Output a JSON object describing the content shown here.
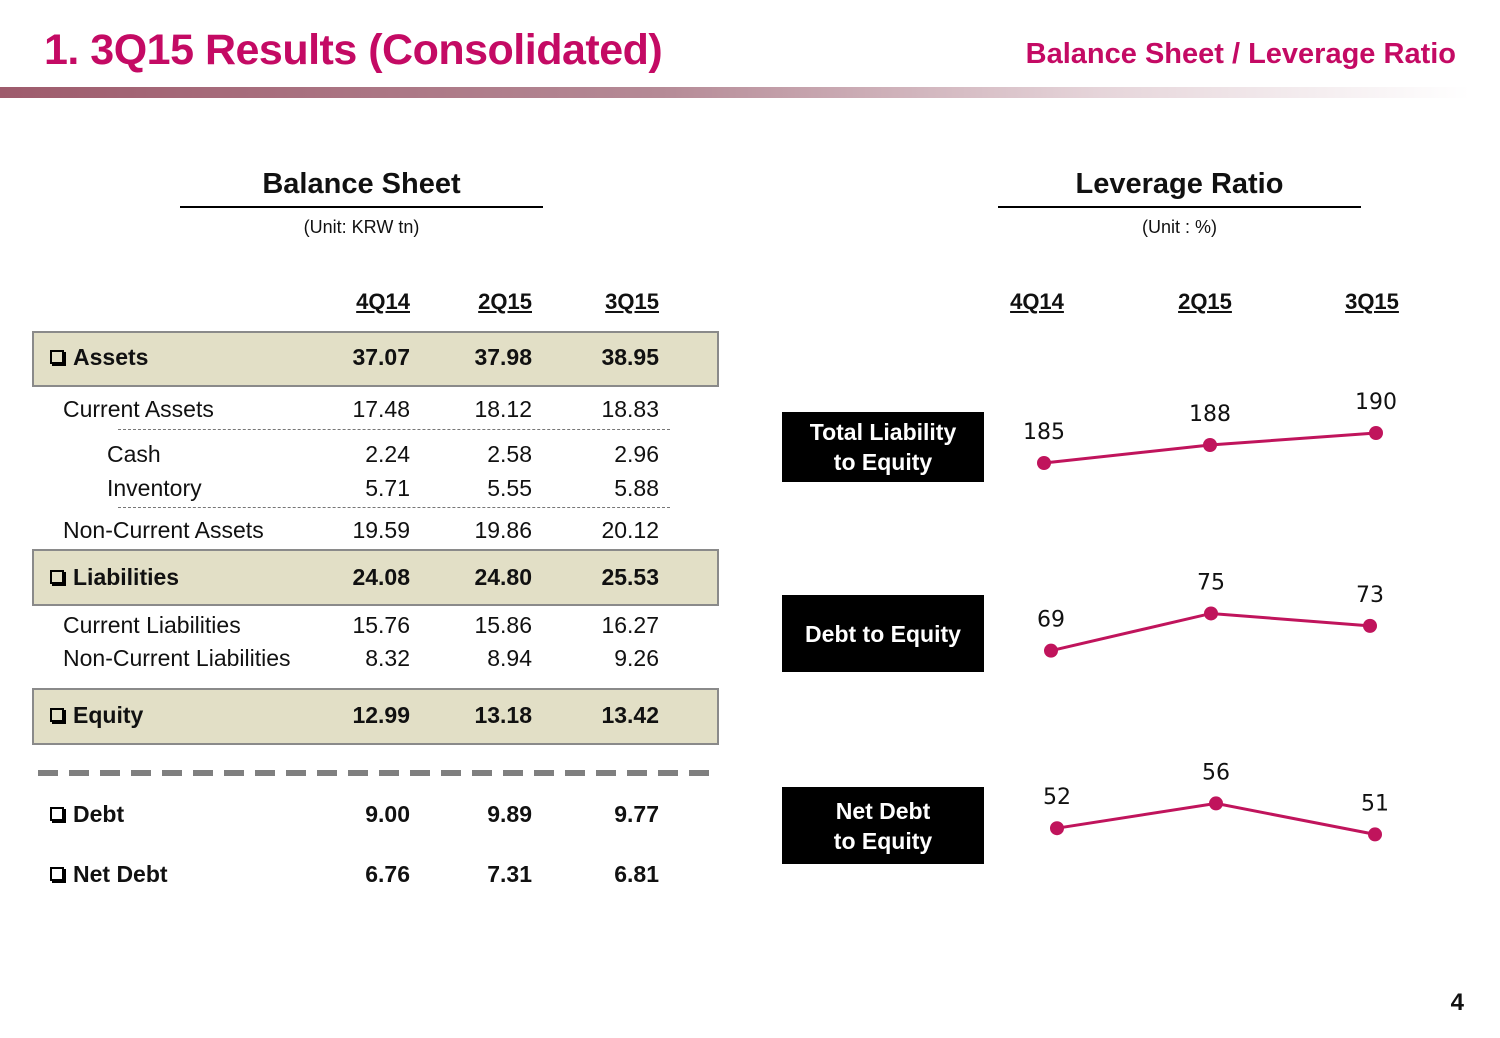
{
  "header": {
    "title": "1. 3Q15 Results (Consolidated)",
    "section": "Balance Sheet / Leverage Ratio",
    "accent_color": "#c40a64"
  },
  "balance_sheet": {
    "title": "Balance Sheet",
    "unit": "(Unit: KRW tn)",
    "columns": [
      "4Q14",
      "2Q15",
      "3Q15"
    ],
    "rows": [
      {
        "label": "Assets",
        "values": [
          "37.07",
          "37.98",
          "38.95"
        ],
        "style": "total"
      },
      {
        "label": "Current Assets",
        "values": [
          "17.48",
          "18.12",
          "18.83"
        ],
        "style": "sub"
      },
      {
        "label": "Cash",
        "values": [
          "2.24",
          "2.58",
          "2.96"
        ],
        "style": "subsub"
      },
      {
        "label": "Inventory",
        "values": [
          "5.71",
          "5.55",
          "5.88"
        ],
        "style": "subsub"
      },
      {
        "label": "Non-Current Assets",
        "values": [
          "19.59",
          "19.86",
          "20.12"
        ],
        "style": "sub"
      },
      {
        "label": "Liabilities",
        "values": [
          "24.08",
          "24.80",
          "25.53"
        ],
        "style": "total"
      },
      {
        "label": "Current Liabilities",
        "values": [
          "15.76",
          "15.86",
          "16.27"
        ],
        "style": "sub"
      },
      {
        "label": "Non-Current Liabilities",
        "values": [
          "8.32",
          "8.94",
          "9.26"
        ],
        "style": "sub"
      },
      {
        "label": "Equity",
        "values": [
          "12.99",
          "13.18",
          "13.42"
        ],
        "style": "total"
      },
      {
        "label": "Debt",
        "values": [
          "9.00",
          "9.89",
          "9.77"
        ],
        "style": "bullet"
      },
      {
        "label": "Net Debt",
        "values": [
          "6.76",
          "7.31",
          "6.81"
        ],
        "style": "bullet"
      }
    ]
  },
  "leverage": {
    "title": "Leverage Ratio",
    "unit": "(Unit : %)",
    "columns": [
      "4Q14",
      "2Q15",
      "3Q15"
    ],
    "labels": [
      "Total Liability to Equity",
      "Debt to Equity",
      "Net Debt to Equity"
    ],
    "label_lines": [
      [
        "Total Liability",
        "to Equity"
      ],
      [
        "Debt to Equity"
      ],
      [
        "Net Debt",
        "to Equity"
      ]
    ]
  },
  "chart_data": {
    "type": "line",
    "title": "Leverage Ratio",
    "unit": "%",
    "categories": [
      "4Q14",
      "2Q15",
      "3Q15"
    ],
    "series": [
      {
        "name": "Total Liability to Equity",
        "values": [
          185,
          188,
          190
        ]
      },
      {
        "name": "Debt to Equity",
        "values": [
          69,
          75,
          73
        ]
      },
      {
        "name": "Net Debt to Equity",
        "values": [
          52,
          56,
          51
        ]
      }
    ],
    "line_color": "#c0145c",
    "grid": false,
    "legend": "none"
  },
  "page_number": "4"
}
